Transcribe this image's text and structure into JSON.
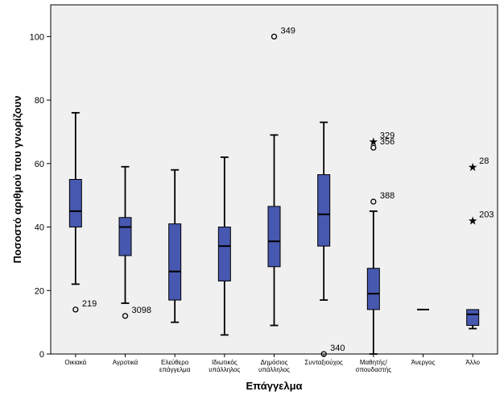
{
  "chart_data": {
    "type": "boxplot",
    "xlabel": "Επάγγελμα",
    "ylabel": "Ποσοστό αριθμού που γνωρίζουν",
    "ylim": [
      0,
      110
    ],
    "yticks": [
      0,
      20,
      40,
      60,
      80,
      100
    ],
    "grid": false,
    "colors": {
      "box_fill": "#4758b0",
      "plot_bg": "#f0f0f0"
    },
    "categories": [
      {
        "label": [
          "Οικιακά"
        ],
        "min": 22,
        "q1": 40,
        "median": 45,
        "q3": 55,
        "max": 76,
        "outliers": [
          {
            "value": 14,
            "marker": "circle",
            "label": "219"
          }
        ]
      },
      {
        "label": [
          "Αγροτικά"
        ],
        "min": 16,
        "q1": 31,
        "median": 40,
        "q3": 43,
        "max": 59,
        "outliers": [
          {
            "value": 12,
            "marker": "circle",
            "label": "3098"
          }
        ]
      },
      {
        "label": [
          "Ελεύθερο",
          "επάγγελμα"
        ],
        "min": 10,
        "q1": 17,
        "median": 26,
        "q3": 41,
        "max": 58,
        "outliers": []
      },
      {
        "label": [
          "Ιδιωτικός",
          "υπάλληλος"
        ],
        "min": 6,
        "q1": 23,
        "median": 34,
        "q3": 40,
        "max": 62,
        "outliers": []
      },
      {
        "label": [
          "Δημόσιος",
          "υπάλληλος"
        ],
        "min": 9,
        "q1": 27.5,
        "median": 35.5,
        "q3": 46.5,
        "max": 69,
        "outliers": [
          {
            "value": 100,
            "marker": "circle",
            "label": "349"
          }
        ]
      },
      {
        "label": [
          "Συνταξιούχος"
        ],
        "min": 17,
        "q1": 34,
        "median": 44,
        "q3": 56.5,
        "max": 73,
        "outliers": [
          {
            "value": 0,
            "marker": "circle",
            "label": "340"
          }
        ]
      },
      {
        "label": [
          "Μαθητής/",
          "σπουδαστής"
        ],
        "min": 0,
        "q1": 14,
        "median": 19,
        "q3": 27,
        "max": 45,
        "outliers": [
          {
            "value": 48,
            "marker": "circle",
            "label": "388"
          },
          {
            "value": 65,
            "marker": "circle",
            "label": "356"
          },
          {
            "value": 67,
            "marker": "star",
            "label": "329"
          }
        ]
      },
      {
        "label": [
          "Άνεργος"
        ],
        "min": 14,
        "q1": 14,
        "median": 14,
        "q3": 14,
        "max": 14,
        "outliers": []
      },
      {
        "label": [
          "Άλλο"
        ],
        "min": 8,
        "q1": 9,
        "median": 12.5,
        "q3": 14,
        "max": 14,
        "outliers": [
          {
            "value": 42,
            "marker": "star",
            "label": "203"
          },
          {
            "value": 59,
            "marker": "star",
            "label": "28"
          }
        ]
      }
    ]
  }
}
